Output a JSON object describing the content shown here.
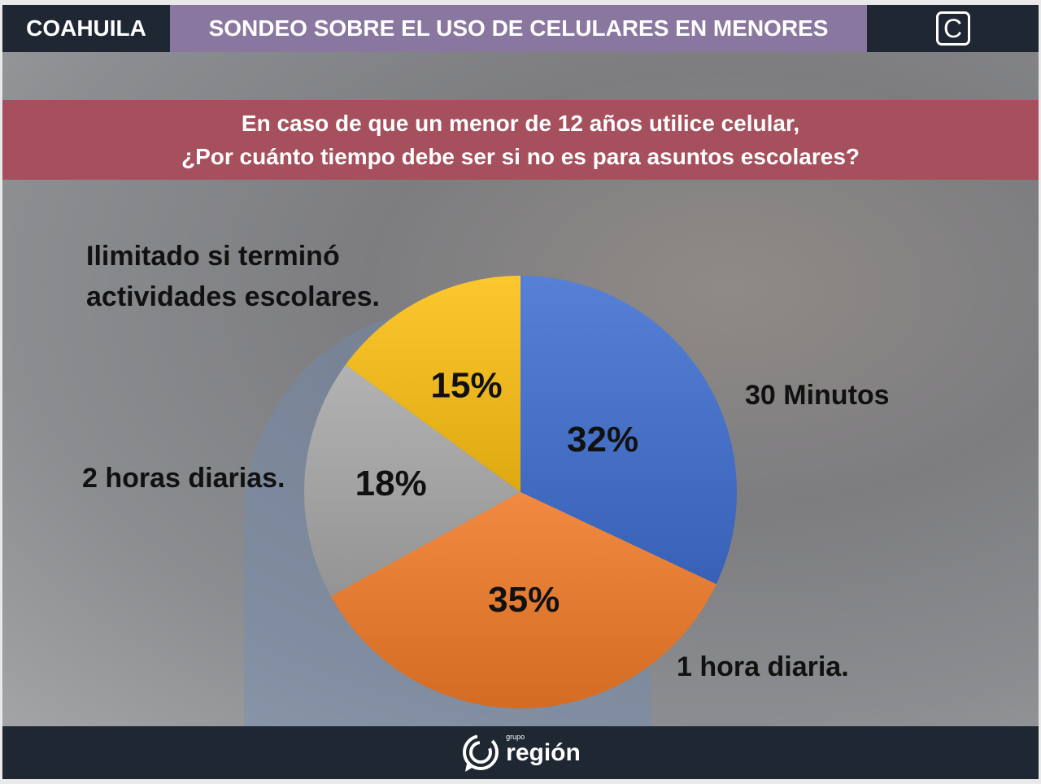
{
  "header": {
    "region": "COAHUILA",
    "title": "SONDEO SOBRE EL USO DE CELULARES EN MENORES",
    "logo_icon": "c-square-icon"
  },
  "question": {
    "line1": "En caso de que un menor de 12 años utilice celular,",
    "line2": "¿Por cuánto tiempo debe ser si no es para asuntos escolares?"
  },
  "chart_data": {
    "type": "pie",
    "title": "",
    "slices": [
      {
        "name": "30 Minutos",
        "value": 32,
        "label": "32%",
        "color": "#3f6fd0"
      },
      {
        "name": "1 hora diaria.",
        "value": 35,
        "label": "35%",
        "color": "#f07a28"
      },
      {
        "name": "2 horas diarias.",
        "value": 18,
        "label": "18%",
        "color": "#a8a8a8"
      },
      {
        "name": "Ilimitado si terminó actividades escolares.",
        "value": 15,
        "label": "15%",
        "color": "#fcc012"
      }
    ]
  },
  "footer": {
    "brand_small": "grupo",
    "brand": "región"
  }
}
